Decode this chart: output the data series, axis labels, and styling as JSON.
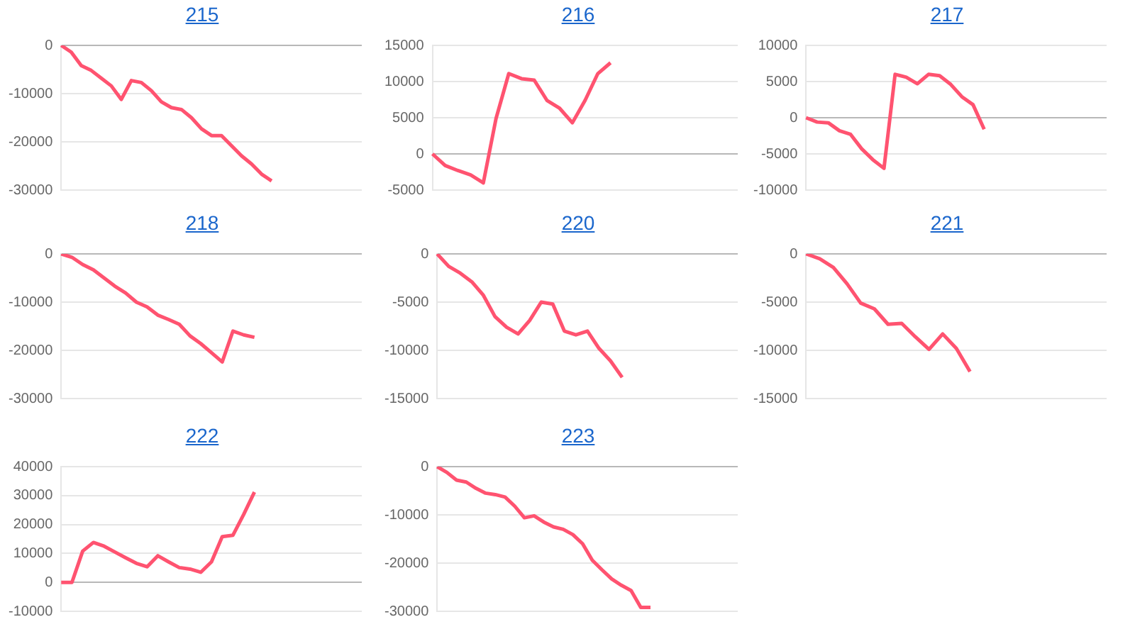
{
  "chart_data": [
    {
      "type": "line",
      "title": "215",
      "categories": [
        null,
        null,
        null,
        null,
        null,
        null,
        null,
        null,
        null,
        null,
        null,
        null,
        null,
        null,
        null,
        null,
        null,
        null,
        null,
        null,
        null,
        null,
        null,
        null,
        null,
        null,
        null,
        null,
        null,
        null,
        null
      ],
      "values": [
        0,
        -1400,
        -4200,
        -5200,
        -6800,
        -8400,
        -11200,
        -7300,
        -7700,
        -9400,
        -11700,
        -12900,
        -13300,
        -15000,
        -17300,
        -18700,
        -18700,
        -20800,
        -22900,
        -24600,
        -26700,
        -28100,
        null,
        null,
        null,
        null,
        null,
        null,
        null,
        null,
        null
      ],
      "color": "#ff5370",
      "ylim": [
        -30000,
        0
      ],
      "yticks": [
        -30000,
        -20000,
        -10000,
        0
      ],
      "grid": "y",
      "tick_labels": "y",
      "line_style": "solid"
    },
    {
      "type": "line",
      "title": "216",
      "categories": [
        null,
        null,
        null,
        null,
        null,
        null,
        null,
        null,
        null,
        null,
        null,
        null,
        null,
        null,
        null,
        null,
        null,
        null,
        null,
        null,
        null,
        null,
        null,
        null,
        null
      ],
      "values": [
        0,
        -1600,
        -2300,
        -2900,
        -4000,
        4900,
        11100,
        10400,
        10200,
        7400,
        6300,
        4300,
        7400,
        11100,
        12600,
        null,
        null,
        null,
        null,
        null,
        null,
        null,
        null,
        null,
        null
      ],
      "color": "#ff5370",
      "ylim": [
        -5000,
        15000
      ],
      "yticks": [
        -5000,
        0,
        5000,
        10000,
        15000
      ],
      "grid": "y",
      "tick_labels": "y",
      "line_style": "solid"
    },
    {
      "type": "line",
      "title": "217",
      "categories": [
        null,
        null,
        null,
        null,
        null,
        null,
        null,
        null,
        null,
        null,
        null,
        null,
        null,
        null,
        null,
        null,
        null,
        null,
        null,
        null,
        null,
        null,
        null,
        null,
        null,
        null,
        null,
        null
      ],
      "values": [
        0,
        -600,
        -700,
        -1800,
        -2300,
        -4300,
        -5800,
        -7000,
        6000,
        5600,
        4700,
        6000,
        5800,
        4600,
        2900,
        1800,
        -1600,
        null,
        null,
        null,
        null,
        null,
        null,
        null,
        null,
        null,
        null,
        null
      ],
      "color": "#ff5370",
      "ylim": [
        -10000,
        10000
      ],
      "yticks": [
        -10000,
        -5000,
        0,
        5000,
        10000
      ],
      "grid": "y",
      "tick_labels": "y",
      "line_style": "solid"
    },
    {
      "type": "line",
      "title": "218",
      "categories": [
        null,
        null,
        null,
        null,
        null,
        null,
        null,
        null,
        null,
        null,
        null,
        null,
        null,
        null,
        null,
        null,
        null,
        null,
        null,
        null,
        null,
        null,
        null,
        null,
        null,
        null,
        null,
        null,
        null
      ],
      "values": [
        0,
        -700,
        -2200,
        -3300,
        -5000,
        -6700,
        -8100,
        -10000,
        -11000,
        -12700,
        -13600,
        -14600,
        -17000,
        -18600,
        -20500,
        -22400,
        -16000,
        -16800,
        -17300,
        null,
        null,
        null,
        null,
        null,
        null,
        null,
        null,
        null,
        null
      ],
      "color": "#ff5370",
      "ylim": [
        -30000,
        0
      ],
      "yticks": [
        -30000,
        -20000,
        -10000,
        0
      ],
      "grid": "y",
      "tick_labels": "y",
      "line_style": "solid"
    },
    {
      "type": "line",
      "title": "220",
      "categories": [
        null,
        null,
        null,
        null,
        null,
        null,
        null,
        null,
        null,
        null,
        null,
        null,
        null,
        null,
        null,
        null,
        null,
        null,
        null,
        null,
        null,
        null,
        null,
        null,
        null,
        null,
        null
      ],
      "values": [
        0,
        -1300,
        -2000,
        -2900,
        -4300,
        -6500,
        -7600,
        -8300,
        -6900,
        -5000,
        -5200,
        -8000,
        -8400,
        -8000,
        -9800,
        -11100,
        -12800,
        null,
        null,
        null,
        null,
        null,
        null,
        null,
        null,
        null,
        null
      ],
      "color": "#ff5370",
      "ylim": [
        -15000,
        0
      ],
      "yticks": [
        -15000,
        -10000,
        -5000,
        0
      ],
      "grid": "y",
      "tick_labels": "y",
      "line_style": "solid"
    },
    {
      "type": "line",
      "title": "221",
      "categories": [
        null,
        null,
        null,
        null,
        null,
        null,
        null,
        null,
        null,
        null,
        null,
        null,
        null,
        null,
        null,
        null,
        null,
        null,
        null,
        null,
        null,
        null,
        null
      ],
      "values": [
        0,
        -500,
        -1400,
        -3100,
        -5100,
        -5700,
        -7300,
        -7200,
        -8600,
        -9900,
        -8300,
        -9800,
        -12200,
        null,
        null,
        null,
        null,
        null,
        null,
        null,
        null,
        null,
        null
      ],
      "color": "#ff5370",
      "ylim": [
        -15000,
        0
      ],
      "yticks": [
        -15000,
        -10000,
        -5000,
        0
      ],
      "grid": "y",
      "tick_labels": "y",
      "line_style": "solid"
    },
    {
      "type": "line",
      "title": "222",
      "categories": [
        null,
        null,
        null,
        null,
        null,
        null,
        null,
        null,
        null,
        null,
        null,
        null,
        null,
        null,
        null,
        null,
        null,
        null,
        null,
        null,
        null,
        null,
        null,
        null,
        null,
        null,
        null,
        null,
        null
      ],
      "values": [
        0,
        0,
        10800,
        13800,
        12500,
        10500,
        8500,
        6600,
        5400,
        9200,
        7100,
        5100,
        4600,
        3500,
        7100,
        15800,
        16300,
        23500,
        31200,
        null,
        null,
        null,
        null,
        null,
        null,
        null,
        null,
        null,
        null
      ],
      "color": "#ff5370",
      "ylim": [
        -10000,
        40000
      ],
      "yticks": [
        -10000,
        0,
        10000,
        20000,
        30000,
        40000
      ],
      "grid": "y",
      "tick_labels": "y",
      "line_style": "solid"
    },
    {
      "type": "line",
      "title": "223",
      "categories": [
        null,
        null,
        null,
        null,
        null,
        null,
        null,
        null,
        null,
        null,
        null,
        null,
        null,
        null,
        null,
        null,
        null,
        null,
        null,
        null,
        null,
        null,
        null,
        null,
        null,
        null,
        null,
        null,
        null,
        null,
        null,
        null
      ],
      "values": [
        0,
        -1200,
        -2800,
        -3200,
        -4500,
        -5500,
        -5800,
        -6300,
        -8200,
        -10600,
        -10200,
        -11500,
        -12500,
        -13000,
        -14100,
        -16000,
        -19400,
        -21400,
        -23300,
        -24600,
        -25700,
        -29200,
        -29200,
        null,
        null,
        null,
        null,
        null,
        null,
        null,
        null,
        null
      ],
      "color": "#ff5370",
      "ylim": [
        -30000,
        0
      ],
      "yticks": [
        -30000,
        -20000,
        -10000,
        0
      ],
      "grid": "y",
      "tick_labels": "y",
      "line_style": "solid"
    }
  ]
}
